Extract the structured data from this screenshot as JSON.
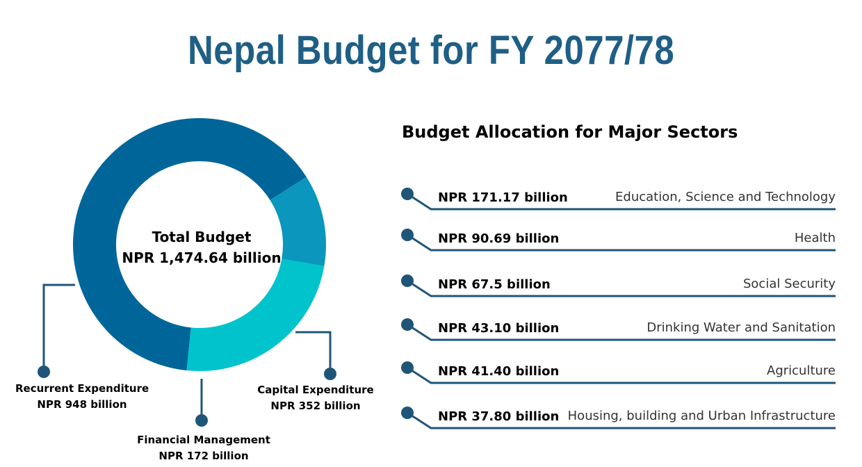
{
  "page": {
    "title": "Nepal Budget for FY 2077/78"
  },
  "chart_data": [
    {
      "type": "pie",
      "title": "",
      "center_label": "Total Budget",
      "center_value": "NPR 1,474.64 billion",
      "slices": [
        {
          "name": "Recurrent Expenditure",
          "value": 948,
          "value_label": "NPR 948 billion",
          "color": "#006699"
        },
        {
          "name": "Capital Expenditure",
          "value": 352,
          "value_label": "NPR 352 billion",
          "color": "#00c3cc"
        },
        {
          "name": "Financial Management",
          "value": 172,
          "value_label": "NPR 172 billion",
          "color": "#0a96bd"
        }
      ]
    },
    {
      "type": "table",
      "title": "Budget Allocation for Major Sectors",
      "rows": [
        {
          "value": "NPR 171.17 billion",
          "sector": "Education, Science and Technology"
        },
        {
          "value": "NPR 90.69 billion",
          "sector": "Health"
        },
        {
          "value": "NPR 67.5 billion",
          "sector": "Social Security"
        },
        {
          "value": "NPR 43.10 billion",
          "sector": "Drinking Water and Sanitation"
        },
        {
          "value": "NPR 41.40 billion",
          "sector": "Agriculture"
        },
        {
          "value": "NPR 37.80 billion",
          "sector": "Housing, building and Urban Infrastructure"
        }
      ]
    }
  ],
  "colors": {
    "title": "#1f5f86",
    "connector": "#1f5577"
  }
}
